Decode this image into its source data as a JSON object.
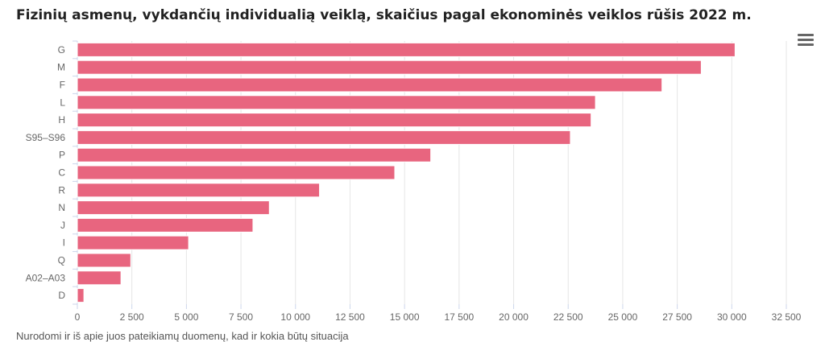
{
  "page": {
    "title": "Fizinių asmenų, vykdančių individualią veiklą, skaičius pagal ekonominės veiklos rūšis 2022 m.",
    "footnote": "Nurodomi ir iš apie juos pateikiamų duomenų, kad ir kokia būtų situacija"
  },
  "chart_data": {
    "type": "bar",
    "orientation": "horizontal",
    "categories": [
      "G",
      "M",
      "F",
      "L",
      "H",
      "S95–S96",
      "P",
      "C",
      "R",
      "N",
      "J",
      "I",
      "Q",
      "A02–A03",
      "D"
    ],
    "values": [
      30150,
      28600,
      26800,
      23750,
      23550,
      22600,
      16200,
      14550,
      11100,
      8800,
      8050,
      5100,
      2450,
      2000,
      300
    ],
    "xlim": [
      0,
      32500
    ],
    "x_ticks": [
      "0",
      "2 500",
      "5 000",
      "7 500",
      "10 000",
      "12 500",
      "15 000",
      "17 500",
      "20 000",
      "22 500",
      "25 000",
      "27 500",
      "30 000",
      "32 500"
    ],
    "x_tick_values": [
      0,
      2500,
      5000,
      7500,
      10000,
      12500,
      15000,
      17500,
      20000,
      22500,
      25000,
      27500,
      30000,
      32500
    ],
    "bar_color": "#e8657f",
    "grid": true,
    "legend": false
  }
}
